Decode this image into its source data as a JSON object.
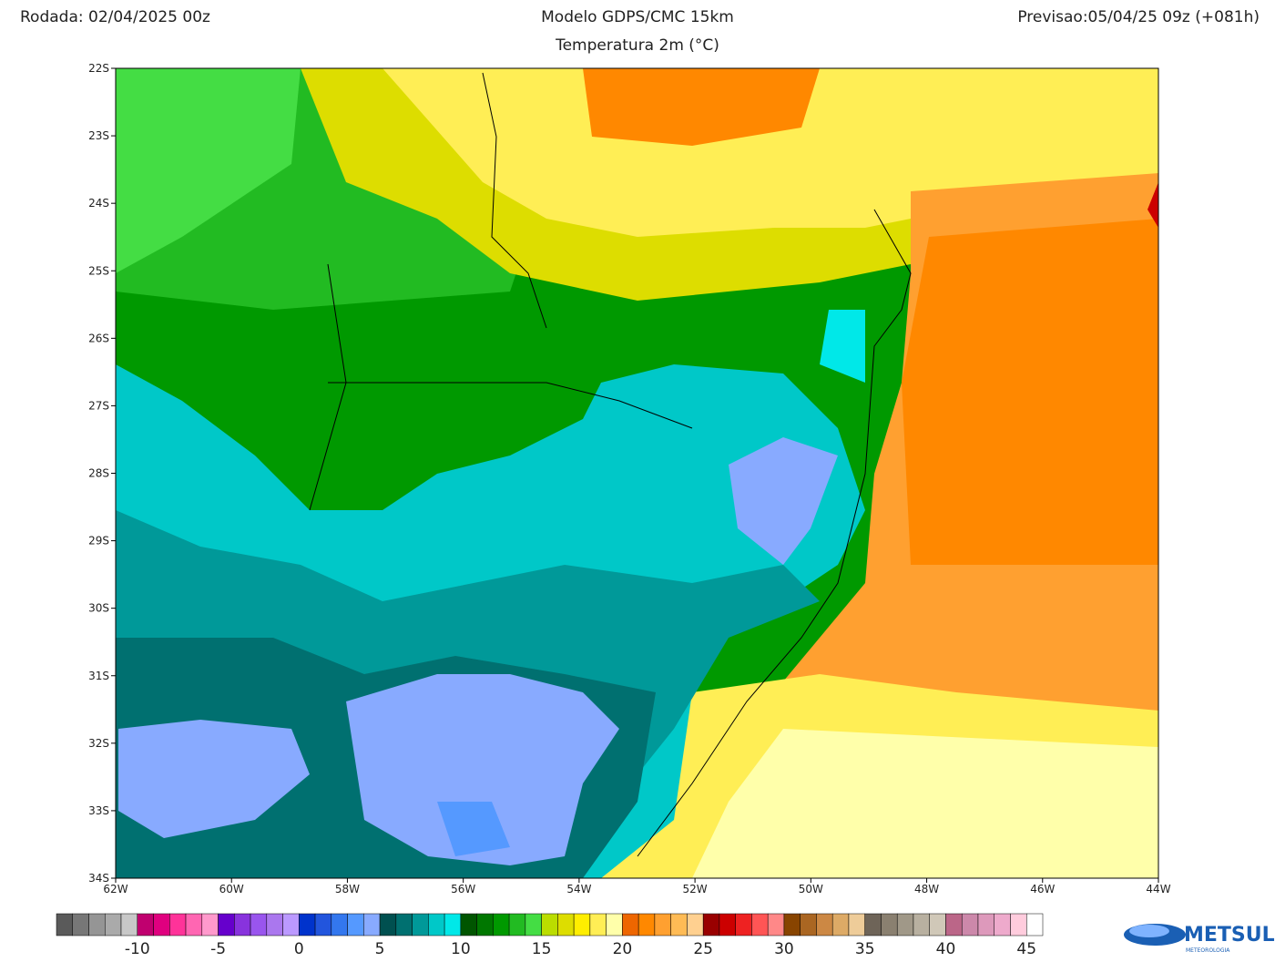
{
  "header": {
    "left": "Rodada: 02/04/2025 00z",
    "title": "Modelo GDPS/CMC 15km",
    "subtitle": "Temperatura 2m (°C)",
    "right": "Previsao:05/04/25 09z (+081h)"
  },
  "map": {
    "lat_labels": [
      "22S",
      "23S",
      "24S",
      "25S",
      "26S",
      "27S",
      "28S",
      "29S",
      "30S",
      "31S",
      "32S",
      "33S",
      "34S"
    ],
    "lon_labels": [
      "62W",
      "60W",
      "58W",
      "56W",
      "54W",
      "52W",
      "50W",
      "48W",
      "46W",
      "44W"
    ]
  },
  "colorbar": {
    "min": -15,
    "max": 46,
    "colors": [
      "#5a5a5a",
      "#777777",
      "#959595",
      "#aaaaaa",
      "#c8c8c8",
      "#c0006f",
      "#e0007f",
      "#ff3399",
      "#ff66b2",
      "#ff99cc",
      "#6600cc",
      "#8833dd",
      "#9955ee",
      "#aa77ee",
      "#bb99ff",
      "#0033cc",
      "#2255dd",
      "#3377ee",
      "#5599ff",
      "#88aaff",
      "#005050",
      "#007070",
      "#009999",
      "#00c8c8",
      "#00e8e8",
      "#005500",
      "#007700",
      "#009900",
      "#22bb22",
      "#44dd44",
      "#bbdd00",
      "#dddd00",
      "#ffee00",
      "#ffee55",
      "#ffffaa",
      "#ee6600",
      "#ff8800",
      "#ffa030",
      "#ffbb55",
      "#ffd090",
      "#990000",
      "#cc0000",
      "#ee2222",
      "#ff5555",
      "#ff8888",
      "#884400",
      "#aa6622",
      "#cc8844",
      "#ddaa66",
      "#eecc99",
      "#6e6458",
      "#8a8070",
      "#a09888",
      "#b8b0a0",
      "#d0c8b8",
      "#bb6688",
      "#cc88aa",
      "#dd99bb",
      "#eeaacc",
      "#ffccdd",
      "#ffffff"
    ],
    "ticks": [
      -10,
      -5,
      0,
      5,
      10,
      15,
      20,
      25,
      30,
      35,
      40,
      45
    ]
  },
  "logo": {
    "name": "METSUL",
    "tagline": "METEOROLOGIA"
  }
}
